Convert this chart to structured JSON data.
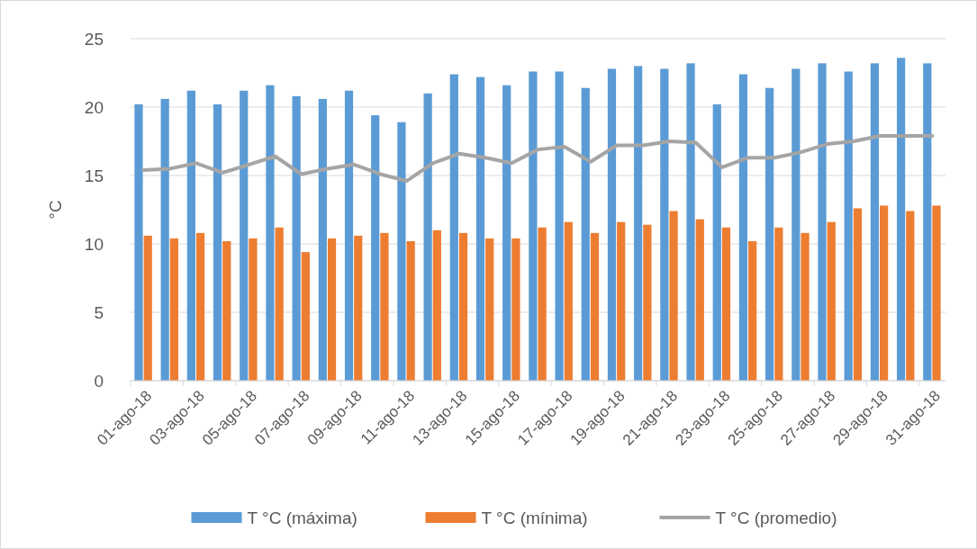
{
  "chart_data": {
    "type": "bar",
    "ylabel": "°C",
    "categories": [
      "01-ago-18",
      null,
      "03-ago-18",
      null,
      "05-ago-18",
      null,
      "07-ago-18",
      null,
      "09-ago-18",
      null,
      "11-ago-18",
      null,
      "13-ago-18",
      null,
      "15-ago-18",
      null,
      "17-ago-18",
      null,
      "19-ago-18",
      null,
      "21-ago-18",
      null,
      "23-ago-18",
      null,
      "25-ago-18",
      null,
      "27-ago-18",
      null,
      "29-ago-18",
      null,
      "31-ago-18"
    ],
    "series": [
      {
        "name": "T °C (máxima)",
        "color": "#5b9bd5",
        "values": [
          20.2,
          20.6,
          21.2,
          20.2,
          21.2,
          21.6,
          20.8,
          20.6,
          21.2,
          19.4,
          18.9,
          21.0,
          22.4,
          22.2,
          21.6,
          22.6,
          22.6,
          21.4,
          22.8,
          23.0,
          22.8,
          23.2,
          20.2,
          22.4,
          21.4,
          22.8,
          23.2,
          22.6,
          23.2,
          23.6,
          23.2
        ]
      },
      {
        "name": "T °C (mínima)",
        "color": "#ed7d31",
        "values": [
          10.6,
          10.4,
          10.8,
          10.2,
          10.4,
          11.2,
          9.4,
          10.4,
          10.6,
          10.8,
          10.2,
          11.0,
          10.8,
          10.4,
          10.4,
          11.2,
          11.6,
          10.8,
          11.6,
          11.4,
          12.4,
          11.8,
          11.2,
          10.2,
          11.2,
          10.8,
          11.6,
          12.6,
          12.8,
          12.4,
          12.8
        ]
      },
      {
        "name": "T °C (promedio)",
        "type": "line",
        "color": "#a5a5a5",
        "values": [
          15.4,
          15.5,
          15.9,
          15.2,
          15.8,
          16.4,
          15.1,
          15.5,
          15.8,
          15.1,
          14.6,
          15.9,
          16.6,
          16.3,
          15.9,
          16.9,
          17.1,
          16.0,
          17.2,
          17.2,
          17.5,
          17.4,
          15.6,
          16.3,
          16.3,
          16.7,
          17.3,
          17.5,
          17.9,
          17.9,
          17.9
        ]
      }
    ],
    "ylim": [
      0,
      25
    ],
    "yticks": [
      0,
      5,
      10,
      15,
      20,
      25
    ],
    "grid": "y",
    "legend": "bottom",
    "line_style": "solid",
    "marker": "none"
  }
}
